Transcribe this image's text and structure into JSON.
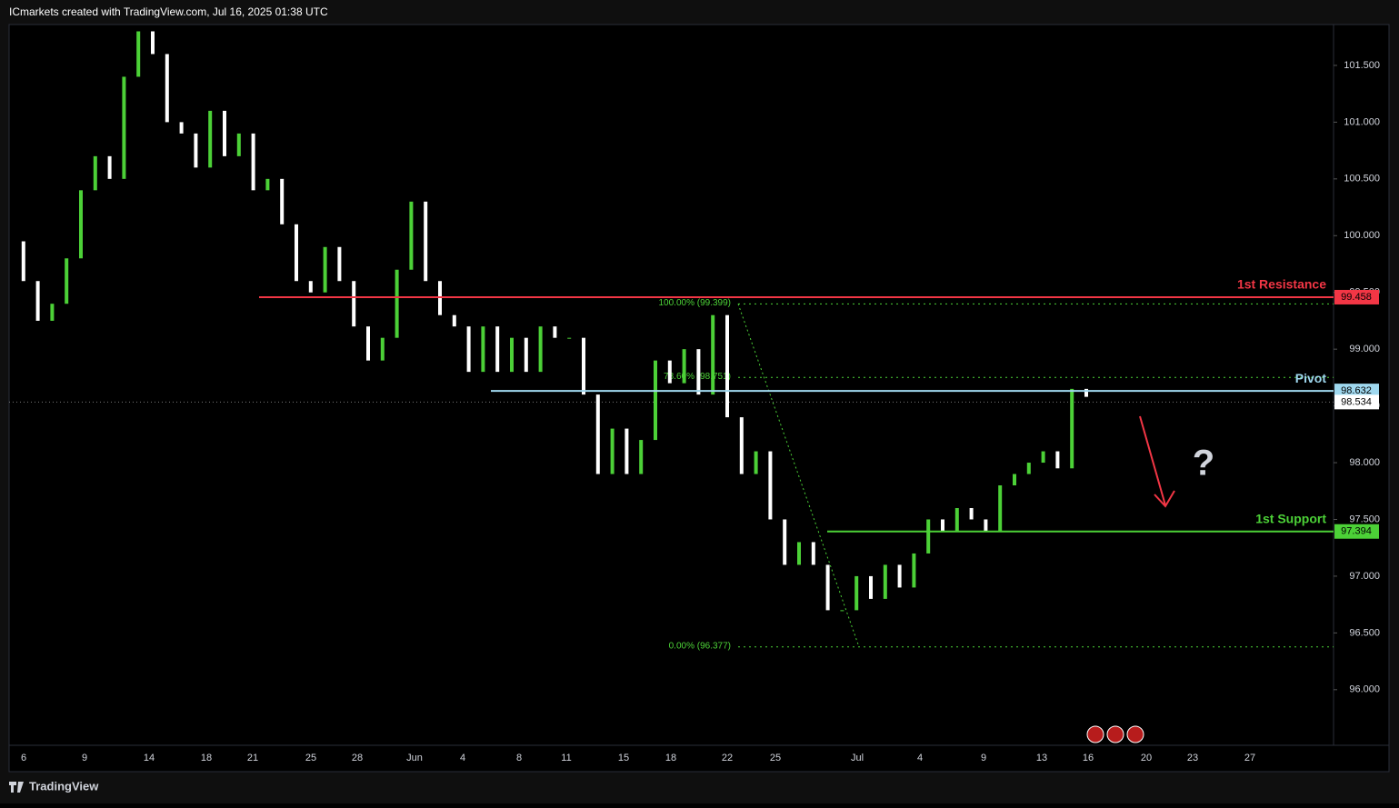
{
  "header": {
    "title": "ICmarkets created with TradingView.com, Jul 16, 2025 01:38 UTC"
  },
  "chart_data": {
    "type": "candlestick",
    "values": [
      99.95,
      99.6,
      99.25,
      99.4,
      99.8,
      100.4,
      100.7,
      100.5,
      101.4,
      101.8,
      101.6,
      101.0,
      100.9,
      100.6,
      101.1,
      100.7,
      100.9,
      100.4,
      100.5,
      100.1,
      99.6,
      99.5,
      99.9,
      99.6,
      99.2,
      98.9,
      99.1,
      99.7,
      100.3,
      99.6,
      99.3,
      99.2,
      98.8,
      99.2,
      98.8,
      99.1,
      98.8,
      99.2,
      99.1,
      99.1,
      98.6,
      97.9,
      98.3,
      97.9,
      98.2,
      98.9,
      98.7,
      99.0,
      98.6,
      99.3,
      98.4,
      97.9,
      98.1,
      97.5,
      97.1,
      97.3,
      97.1,
      96.7,
      96.7,
      97.0,
      96.8,
      97.1,
      96.9,
      97.2,
      97.5,
      97.4,
      97.6,
      97.5,
      97.4,
      97.8,
      97.9,
      98.0,
      98.1,
      97.95,
      98.65,
      98.58
    ],
    "up_color": "#4cd137",
    "down_color": "#ffffff",
    "ylim": [
      95.51,
      101.86
    ],
    "yticks": [
      {
        "value": 96,
        "label": "96.000"
      },
      {
        "value": 96.5,
        "label": "96.500"
      },
      {
        "value": 97,
        "label": "97.000"
      },
      {
        "value": 97.5,
        "label": "97.500"
      },
      {
        "value": 98,
        "label": "98.000"
      },
      {
        "value": 98.5,
        "label": "98.500"
      },
      {
        "value": 99,
        "label": "99.000"
      },
      {
        "value": 99.5,
        "label": "99.500"
      },
      {
        "value": 100,
        "label": "100.000"
      },
      {
        "value": 100.5,
        "label": "100.500"
      },
      {
        "value": 101,
        "label": "101.000"
      },
      {
        "value": 101.5,
        "label": "101.500"
      }
    ],
    "x_labels": [
      "6",
      "9",
      "14",
      "18",
      "21",
      "25",
      "28",
      "Jun",
      "4",
      "8",
      "11",
      "15",
      "18",
      "22",
      "25",
      "Jul",
      "4",
      "9",
      "13",
      "16",
      "20",
      "23",
      "27"
    ],
    "levels": [
      {
        "name": "1st Resistance",
        "value": 99.458,
        "color": "#f23645"
      },
      {
        "name": "Pivot",
        "value": 98.632,
        "color": "#9fd8ef"
      },
      {
        "name": "1st Support",
        "value": 97.394,
        "color": "#4cd137"
      }
    ],
    "last_price": 98.534,
    "fib_levels": [
      {
        "label": "100.00% (99.399)",
        "value": 99.399
      },
      {
        "label": "78.60% (98.751)",
        "value": 98.751
      },
      {
        "label": "0.00% (96.377)",
        "value": 96.377
      }
    ],
    "annotation": "?"
  },
  "footer": {
    "brand": "TradingView"
  }
}
